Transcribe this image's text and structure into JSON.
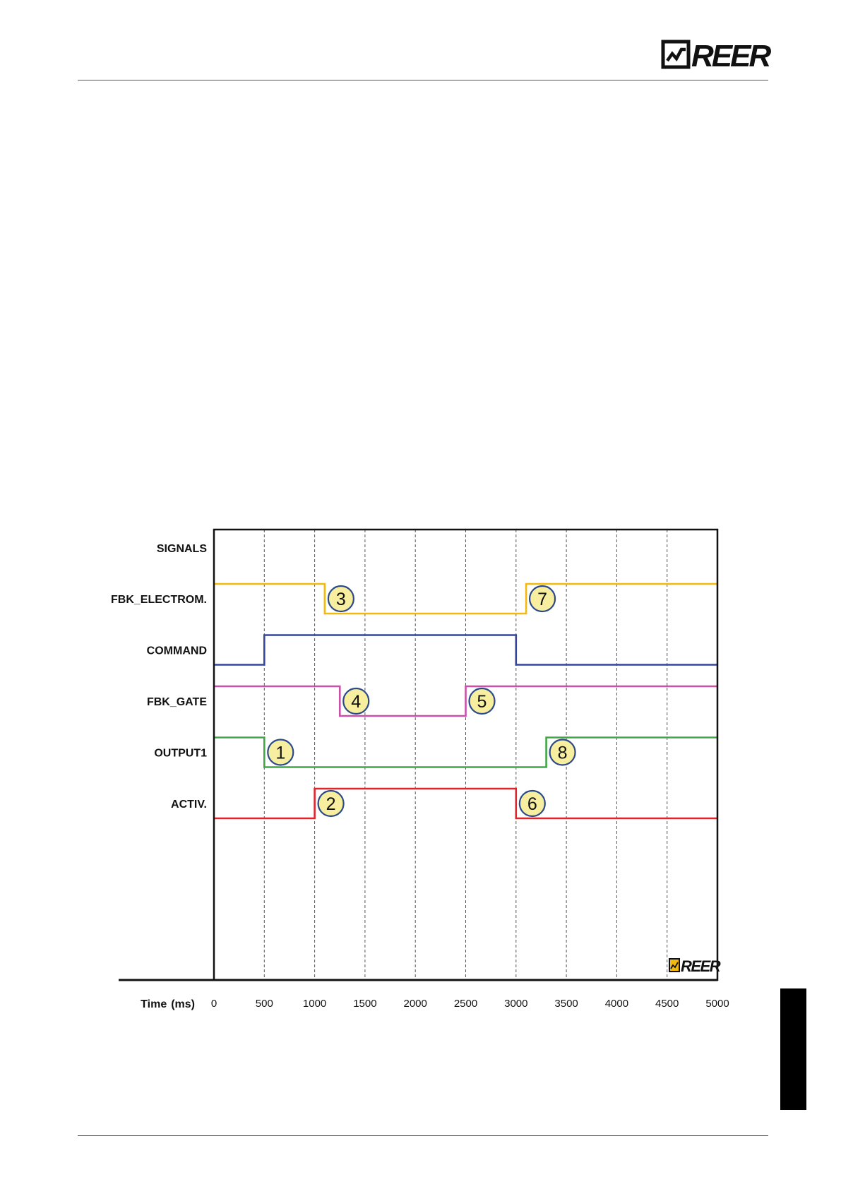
{
  "header": {
    "logo_text": "REER"
  },
  "chart_data": {
    "type": "line",
    "title": "",
    "ylabel": "SIGNALS",
    "xlabel": "Time",
    "xunit": "(ms)",
    "xlim": [
      0,
      5000
    ],
    "xticks": [
      "0",
      "500",
      "1000",
      "1500",
      "2000",
      "2500",
      "3000",
      "3500",
      "4000",
      "4500",
      "5000"
    ],
    "grid": true,
    "series": [
      {
        "name": "FBK_ELECTROM.",
        "color": "#f2b90f",
        "steps": [
          [
            0,
            1
          ],
          [
            1100,
            0
          ],
          [
            3100,
            1
          ],
          [
            5000,
            1
          ]
        ]
      },
      {
        "name": "COMMAND",
        "color": "#34479a",
        "steps": [
          [
            0,
            0
          ],
          [
            500,
            1
          ],
          [
            3000,
            0
          ],
          [
            5000,
            0
          ]
        ]
      },
      {
        "name": "FBK_GATE",
        "color": "#cc4fa8",
        "steps": [
          [
            0,
            1
          ],
          [
            1250,
            0
          ],
          [
            2500,
            1
          ],
          [
            5000,
            1
          ]
        ]
      },
      {
        "name": "OUTPUT1",
        "color": "#3ea845",
        "steps": [
          [
            0,
            1
          ],
          [
            500,
            0
          ],
          [
            3300,
            1
          ],
          [
            5000,
            1
          ]
        ]
      },
      {
        "name": "ACTIV.",
        "color": "#e0242a",
        "steps": [
          [
            0,
            0
          ],
          [
            1000,
            1
          ],
          [
            3000,
            0
          ],
          [
            5000,
            0
          ]
        ]
      }
    ],
    "annotations": [
      {
        "label": "1",
        "series": "OUTPUT1",
        "x": 500
      },
      {
        "label": "2",
        "series": "ACTIV.",
        "x": 1000
      },
      {
        "label": "3",
        "series": "FBK_ELECTROM.",
        "x": 1100
      },
      {
        "label": "4",
        "series": "FBK_GATE",
        "x": 1250
      },
      {
        "label": "5",
        "series": "FBK_GATE",
        "x": 2500
      },
      {
        "label": "6",
        "series": "ACTIV.",
        "x": 3000
      },
      {
        "label": "7",
        "series": "FBK_ELECTROM.",
        "x": 3100
      },
      {
        "label": "8",
        "series": "OUTPUT1",
        "x": 3300
      }
    ],
    "annotation_style": {
      "fill": "#f7eea0",
      "stroke": "#2b4a8a"
    },
    "watermark": "REER"
  }
}
